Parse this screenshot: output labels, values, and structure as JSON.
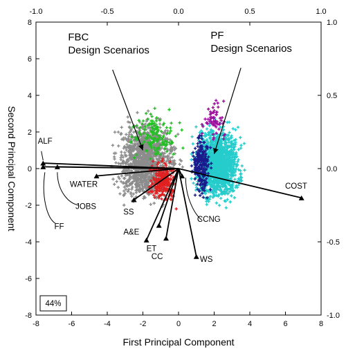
{
  "chart_data": {
    "type": "scatter",
    "xlabel": "First Principal Component",
    "ylabel": "Second Principal Component",
    "xlim": [
      -8,
      8
    ],
    "ylim": [
      -8,
      8
    ],
    "x_ticks": [
      -8,
      -6,
      -4,
      -2,
      0,
      2,
      4,
      6,
      8
    ],
    "y_ticks": [
      -8,
      -6,
      -4,
      -2,
      0,
      2,
      4,
      6,
      8
    ],
    "top_ticks": [
      "-1.0",
      "-0.5",
      "0.0",
      "0.5",
      "1.0"
    ],
    "right_ticks": [
      "1.0",
      "0.5",
      "0.0",
      "-0.5",
      "-1.0"
    ],
    "variance_box": "44%",
    "annotations": [
      {
        "lines": [
          "FBC",
          "Design Scenarios"
        ],
        "arrow_to": [
          -2.0,
          1.0
        ]
      },
      {
        "lines": [
          "PF",
          "Design Scenarios"
        ],
        "arrow_to": [
          2.0,
          0.8
        ]
      }
    ],
    "clusters": [
      {
        "group": "FBC",
        "color": "#8c8c8c",
        "center": [
          -1.8,
          0.4
        ],
        "spread": [
          1.3,
          1.7
        ],
        "count": 1400
      },
      {
        "group": "FBC",
        "color": "#e02020",
        "center": [
          -0.9,
          -0.7
        ],
        "spread": [
          0.6,
          0.9
        ],
        "count": 220
      },
      {
        "group": "FBC",
        "color": "#22c022",
        "center": [
          -1.4,
          1.8
        ],
        "spread": [
          1.0,
          1.0
        ],
        "count": 140
      },
      {
        "group": "PF",
        "color": "#26cccc",
        "center": [
          2.2,
          0.3
        ],
        "spread": [
          1.0,
          1.6
        ],
        "count": 1400
      },
      {
        "group": "PF",
        "color": "#1a1a8c",
        "center": [
          1.3,
          0.2
        ],
        "spread": [
          0.4,
          1.4
        ],
        "count": 220
      },
      {
        "group": "PF",
        "color": "#9c0f9c",
        "center": [
          2.0,
          2.7
        ],
        "spread": [
          0.6,
          0.9
        ],
        "count": 60
      }
    ],
    "vectors": [
      {
        "label": "ALF",
        "x": -7.6,
        "y": 0.3
      },
      {
        "label": "FF",
        "x": -7.6,
        "y": 0.1
      },
      {
        "label": "JOBS",
        "x": -6.8,
        "y": 0.1
      },
      {
        "label": "WATER",
        "x": -4.6,
        "y": -0.4
      },
      {
        "label": "SS",
        "x": -2.5,
        "y": -1.7
      },
      {
        "label": "A&E",
        "x": -1.8,
        "y": -3.9
      },
      {
        "label": "ET",
        "x": -1.1,
        "y": -3.1
      },
      {
        "label": "CC",
        "x": -0.7,
        "y": -3.8
      },
      {
        "label": "WS",
        "x": 1.0,
        "y": -4.8
      },
      {
        "label": "CCNG",
        "x": 0.2,
        "y": -0.4
      },
      {
        "label": "COST",
        "x": 6.9,
        "y": -1.6
      }
    ]
  }
}
